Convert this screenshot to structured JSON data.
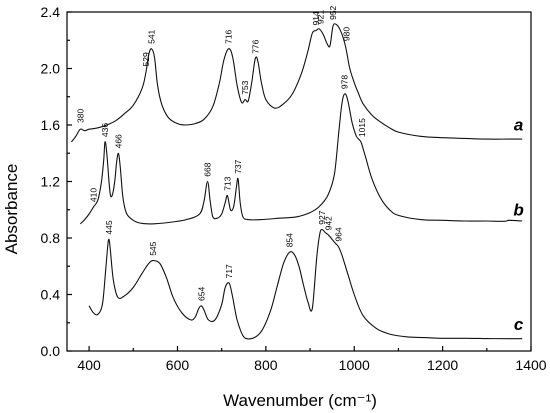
{
  "chart_data": {
    "type": "line",
    "title": "",
    "xlabel": "Wavenumber (cm⁻¹)",
    "ylabel": "Absorbance",
    "xlim": [
      350,
      1400
    ],
    "ylim": [
      0.0,
      2.4
    ],
    "x_ticks": [
      400,
      600,
      800,
      1000,
      1200,
      1400
    ],
    "x_tick_labels": [
      "400",
      "600",
      "800",
      "1000",
      "1200",
      "1400"
    ],
    "y_ticks": [
      0.0,
      0.4,
      0.8,
      1.2,
      1.6,
      2.0,
      2.4
    ],
    "y_tick_labels": [
      "0.0",
      "0.4",
      "0.8",
      "1.2",
      "1.6",
      "2.0",
      "2.4"
    ],
    "grid": false,
    "legend": "none",
    "series": [
      {
        "name": "a",
        "x": [
          360,
          370,
          380,
          390,
          400,
          420,
          440,
          460,
          480,
          500,
          520,
          529,
          535,
          541,
          548,
          555,
          565,
          580,
          600,
          620,
          640,
          660,
          680,
          695,
          705,
          716,
          725,
          735,
          745,
          753,
          760,
          768,
          776,
          782,
          790,
          800,
          820,
          840,
          860,
          880,
          895,
          905,
          914,
          921,
          930,
          938,
          945,
          952,
          960,
          970,
          980,
          990,
          1000,
          1010,
          1020,
          1040,
          1060,
          1080,
          1100,
          1150,
          1200,
          1250,
          1300,
          1350,
          1380
        ],
        "y": [
          1.48,
          1.52,
          1.57,
          1.56,
          1.57,
          1.58,
          1.6,
          1.63,
          1.68,
          1.74,
          1.86,
          1.98,
          2.1,
          2.14,
          2.08,
          1.88,
          1.74,
          1.65,
          1.61,
          1.6,
          1.61,
          1.64,
          1.73,
          1.9,
          2.06,
          2.14,
          2.08,
          1.88,
          1.76,
          1.78,
          1.77,
          1.9,
          2.07,
          2.05,
          1.9,
          1.78,
          1.72,
          1.75,
          1.82,
          1.96,
          2.12,
          2.25,
          2.27,
          2.28,
          2.24,
          2.18,
          2.16,
          2.3,
          2.31,
          2.26,
          2.16,
          2.0,
          1.9,
          1.82,
          1.75,
          1.67,
          1.62,
          1.58,
          1.55,
          1.52,
          1.51,
          1.505,
          1.5,
          1.5,
          1.5
        ]
      },
      {
        "name": "b",
        "x": [
          380,
          390,
          400,
          410,
          420,
          428,
          433,
          436,
          440,
          447,
          452,
          458,
          462,
          466,
          470,
          476,
          482,
          490,
          510,
          540,
          580,
          620,
          650,
          660,
          668,
          674,
          680,
          690,
          700,
          708,
          713,
          720,
          727,
          733,
          737,
          742,
          748,
          760,
          790,
          830,
          870,
          900,
          920,
          940,
          955,
          965,
          972,
          978,
          985,
          995,
          1005,
          1015,
          1025,
          1040,
          1060,
          1080,
          1100,
          1150,
          1200,
          1250,
          1300,
          1340,
          1350,
          1380
        ],
        "y": [
          0.9,
          0.93,
          0.97,
          1.02,
          1.07,
          1.2,
          1.35,
          1.48,
          1.4,
          1.13,
          1.1,
          1.2,
          1.33,
          1.4,
          1.32,
          1.1,
          1.0,
          0.95,
          0.91,
          0.9,
          0.91,
          0.93,
          0.97,
          1.06,
          1.2,
          1.06,
          0.95,
          0.94,
          0.97,
          1.05,
          1.1,
          1.0,
          1.02,
          1.15,
          1.22,
          1.05,
          0.95,
          0.93,
          0.93,
          0.94,
          0.95,
          0.98,
          1.02,
          1.1,
          1.25,
          1.55,
          1.75,
          1.82,
          1.78,
          1.62,
          1.52,
          1.48,
          1.38,
          1.22,
          1.08,
          1.0,
          0.96,
          0.93,
          0.925,
          0.92,
          0.92,
          0.918,
          0.925,
          0.92
        ]
      },
      {
        "name": "c",
        "x": [
          400,
          410,
          420,
          430,
          437,
          442,
          445,
          448,
          455,
          465,
          480,
          500,
          520,
          535,
          545,
          560,
          575,
          590,
          610,
          630,
          640,
          648,
          654,
          660,
          670,
          685,
          700,
          708,
          717,
          725,
          735,
          750,
          770,
          790,
          810,
          825,
          840,
          854,
          865,
          875,
          885,
          895,
          905,
          915,
          922,
          927,
          934,
          942,
          950,
          958,
          964,
          972,
          985,
          1000,
          1020,
          1050,
          1080,
          1120,
          1160,
          1200,
          1250,
          1300,
          1350,
          1380
        ],
        "y": [
          0.32,
          0.27,
          0.26,
          0.33,
          0.55,
          0.74,
          0.79,
          0.72,
          0.5,
          0.38,
          0.39,
          0.45,
          0.55,
          0.62,
          0.64,
          0.62,
          0.52,
          0.38,
          0.27,
          0.22,
          0.24,
          0.3,
          0.32,
          0.29,
          0.22,
          0.22,
          0.33,
          0.45,
          0.48,
          0.38,
          0.22,
          0.1,
          0.09,
          0.14,
          0.28,
          0.45,
          0.62,
          0.7,
          0.68,
          0.6,
          0.47,
          0.35,
          0.3,
          0.66,
          0.83,
          0.86,
          0.84,
          0.82,
          0.79,
          0.76,
          0.74,
          0.68,
          0.55,
          0.4,
          0.25,
          0.16,
          0.12,
          0.1,
          0.095,
          0.09,
          0.09,
          0.088,
          0.087,
          0.087
        ]
      }
    ],
    "series_labels": [
      {
        "text": "a",
        "x": 1372,
        "y": 1.56
      },
      {
        "text": "b",
        "x": 1372,
        "y": 0.96
      },
      {
        "text": "c",
        "x": 1372,
        "y": 0.15
      }
    ],
    "peak_labels": [
      {
        "text": "380",
        "x": 380,
        "y": 1.6
      },
      {
        "text": "529",
        "x": 529,
        "y": 2.0
      },
      {
        "text": "541",
        "x": 541,
        "y": 2.16
      },
      {
        "text": "716",
        "x": 716,
        "y": 2.16
      },
      {
        "text": "753",
        "x": 753,
        "y": 1.8
      },
      {
        "text": "776",
        "x": 776,
        "y": 2.09
      },
      {
        "text": "914",
        "x": 914,
        "y": 2.29
      },
      {
        "text": "921",
        "x": 924,
        "y": 2.3
      },
      {
        "text": "952",
        "x": 952,
        "y": 2.33
      },
      {
        "text": "980",
        "x": 982,
        "y": 2.18
      },
      {
        "text": "436",
        "x": 436,
        "y": 1.5
      },
      {
        "text": "466",
        "x": 466,
        "y": 1.42
      },
      {
        "text": "410",
        "x": 410,
        "y": 1.04
      },
      {
        "text": "668",
        "x": 668,
        "y": 1.22
      },
      {
        "text": "713",
        "x": 713,
        "y": 1.12
      },
      {
        "text": "737",
        "x": 737,
        "y": 1.24
      },
      {
        "text": "978",
        "x": 978,
        "y": 1.84
      },
      {
        "text": "1015",
        "x": 1018,
        "y": 1.5
      },
      {
        "text": "445",
        "x": 445,
        "y": 0.81
      },
      {
        "text": "545",
        "x": 545,
        "y": 0.66
      },
      {
        "text": "654",
        "x": 654,
        "y": 0.34
      },
      {
        "text": "717",
        "x": 717,
        "y": 0.5
      },
      {
        "text": "854",
        "x": 854,
        "y": 0.72
      },
      {
        "text": "927",
        "x": 927,
        "y": 0.88
      },
      {
        "text": "942",
        "x": 942,
        "y": 0.84
      },
      {
        "text": "964",
        "x": 964,
        "y": 0.76
      }
    ]
  }
}
